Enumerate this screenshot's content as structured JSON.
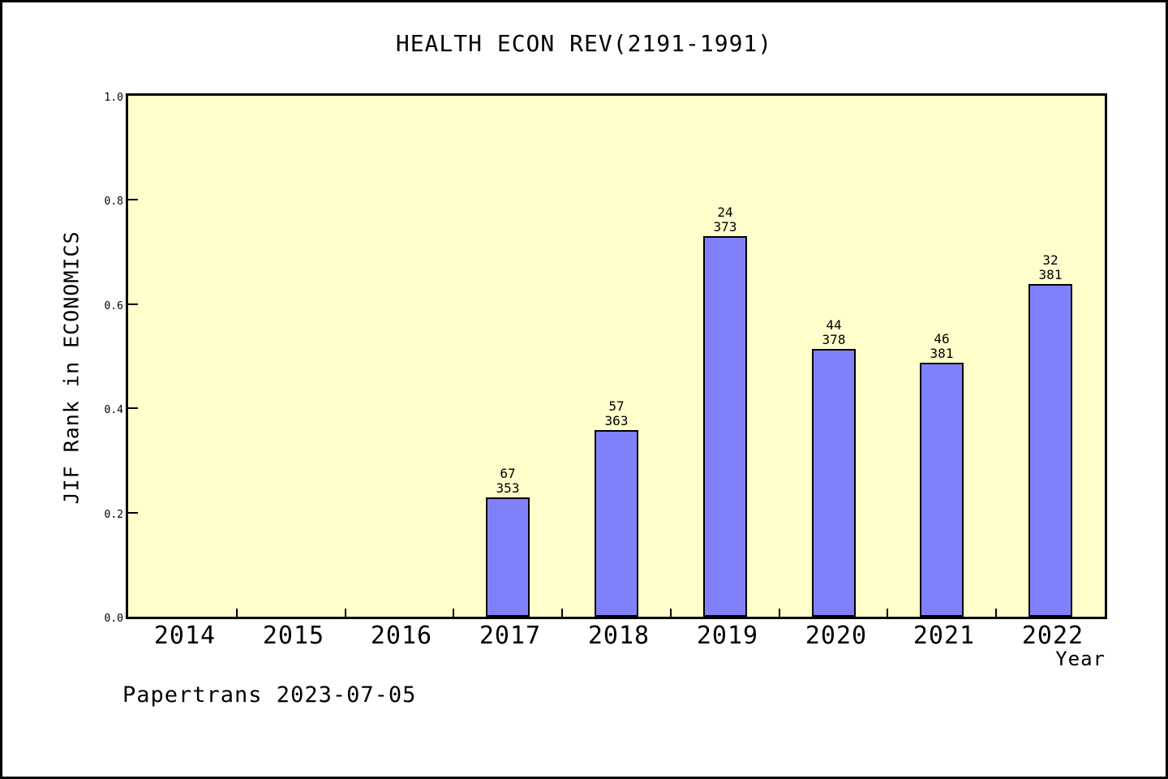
{
  "figure": {
    "watermark": "Papertrans 2023-07-05"
  },
  "chart_data": {
    "type": "bar",
    "title": "HEALTH ECON REV(2191-1991)",
    "xlabel": "Year",
    "ylabel": "JIF Rank in ECONOMICS",
    "ylim": [
      0.0,
      1.0
    ],
    "ytick_labels": [
      "0.0",
      "0.2",
      "0.4",
      "0.6",
      "0.8",
      "1.0"
    ],
    "categories": [
      "2014",
      "2015",
      "2016",
      "2017",
      "2018",
      "2019",
      "2020",
      "2021",
      "2022"
    ],
    "bars": [
      {
        "category": "2014",
        "value": null,
        "rank": null,
        "total": null
      },
      {
        "category": "2015",
        "value": null,
        "rank": null,
        "total": null
      },
      {
        "category": "2016",
        "value": null,
        "rank": null,
        "total": null
      },
      {
        "category": "2017",
        "value": 0.229,
        "rank": "67",
        "total": "353"
      },
      {
        "category": "2018",
        "value": 0.358,
        "rank": "57",
        "total": "363"
      },
      {
        "category": "2019",
        "value": 0.73,
        "rank": "24",
        "total": "373"
      },
      {
        "category": "2020",
        "value": 0.514,
        "rank": "44",
        "total": "378"
      },
      {
        "category": "2021",
        "value": 0.487,
        "rank": "46",
        "total": "381"
      },
      {
        "category": "2022",
        "value": 0.638,
        "rank": "32",
        "total": "381"
      }
    ],
    "bar_color": "#8080fa",
    "bar_edge_color": "#000000",
    "plot_background": "#ffffcc",
    "outer_background": "#ffffff",
    "grid": false,
    "legend": null
  }
}
